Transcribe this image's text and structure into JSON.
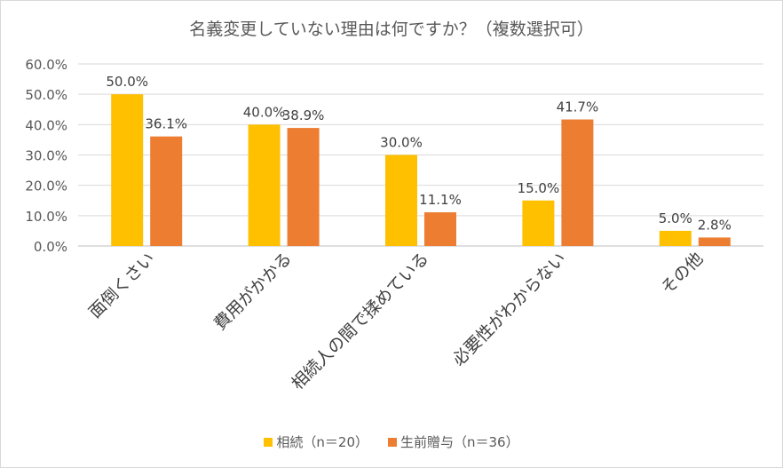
{
  "chart_data": {
    "type": "bar",
    "title": "名義変更していない理由は何ですか？（複数選択可）",
    "categories": [
      "面倒くさい",
      "費用がかかる",
      "相続人の間で揉めている",
      "必要性がわからない",
      "その他"
    ],
    "series": [
      {
        "name": "相続（n＝20）",
        "color": "#FFC000",
        "values": [
          50.0,
          40.0,
          30.0,
          15.0,
          5.0
        ],
        "labels": [
          "50.0%",
          "40.0%",
          "30.0%",
          "15.0%",
          "5.0%"
        ]
      },
      {
        "name": "生前贈与（n＝36）",
        "color": "#ED7D31",
        "values": [
          36.1,
          38.9,
          11.1,
          41.7,
          2.8
        ],
        "labels": [
          "36.1%",
          "38.9%",
          "11.1%",
          "41.7%",
          "2.8%"
        ]
      }
    ],
    "ylim": [
      0,
      60
    ],
    "yticks": [
      0,
      10,
      20,
      30,
      40,
      50,
      60
    ],
    "ytick_labels": [
      "0.0%",
      "10.0%",
      "20.0%",
      "30.0%",
      "40.0%",
      "50.0%",
      "60.0%"
    ],
    "xlabel": "",
    "ylabel": "",
    "grid": true,
    "legend": "bottom"
  }
}
